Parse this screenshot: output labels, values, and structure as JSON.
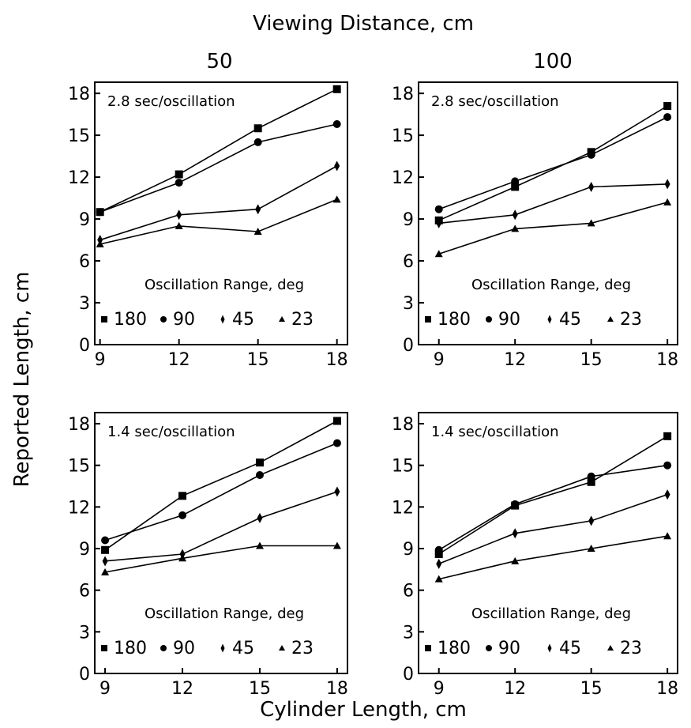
{
  "figure": {
    "top_label": "Viewing Distance, cm",
    "column_labels": [
      "50",
      "100"
    ],
    "xlabel": "Cylinder Length, cm",
    "ylabel": "Reported Length, cm"
  },
  "chart_data": [
    {
      "type": "line",
      "title": "2.8 sec/oscillation",
      "viewing_distance": "50",
      "x": [
        9,
        12,
        15,
        18
      ],
      "xlim": [
        8.8,
        18.4
      ],
      "ylim": [
        0,
        18.8
      ],
      "xticks": [
        9,
        12,
        15,
        18
      ],
      "yticks": [
        0,
        3,
        6,
        9,
        12,
        15,
        18
      ],
      "legend_title": "Oscillation Range, deg",
      "series": [
        {
          "name": "180",
          "marker": "square",
          "values": [
            9.5,
            12.2,
            15.5,
            18.3
          ]
        },
        {
          "name": "90",
          "marker": "circle",
          "values": [
            9.5,
            11.6,
            14.5,
            15.8
          ]
        },
        {
          "name": "45",
          "marker": "diamond",
          "values": [
            7.5,
            9.3,
            9.7,
            12.8
          ]
        },
        {
          "name": "23",
          "marker": "triangle",
          "values": [
            7.2,
            8.5,
            8.1,
            10.4
          ]
        }
      ]
    },
    {
      "type": "line",
      "title": "2.8 sec/oscillation",
      "viewing_distance": "100",
      "x": [
        9,
        12,
        15,
        18
      ],
      "xlim": [
        8.2,
        18.4
      ],
      "ylim": [
        0,
        18.8
      ],
      "xticks": [
        9,
        12,
        15,
        18
      ],
      "yticks": [
        0,
        3,
        6,
        9,
        12,
        15,
        18
      ],
      "legend_title": "Oscillation Range, deg",
      "series": [
        {
          "name": "180",
          "marker": "square",
          "values": [
            8.9,
            11.3,
            13.8,
            17.1
          ]
        },
        {
          "name": "90",
          "marker": "circle",
          "values": [
            9.7,
            11.7,
            13.6,
            16.3
          ]
        },
        {
          "name": "45",
          "marker": "diamond",
          "values": [
            8.7,
            9.3,
            11.3,
            11.5
          ]
        },
        {
          "name": "23",
          "marker": "triangle",
          "values": [
            6.5,
            8.3,
            8.7,
            10.2
          ]
        }
      ]
    },
    {
      "type": "line",
      "title": "1.4 sec/oscillation",
      "viewing_distance": "50",
      "x": [
        9,
        12,
        15,
        18
      ],
      "xlim": [
        8.6,
        18.4
      ],
      "ylim": [
        0,
        18.8
      ],
      "xticks": [
        9,
        12,
        15,
        18
      ],
      "yticks": [
        0,
        3,
        6,
        9,
        12,
        15,
        18
      ],
      "legend_title": "Oscillation Range, deg",
      "series": [
        {
          "name": "180",
          "marker": "square",
          "values": [
            8.9,
            12.8,
            15.2,
            18.2
          ]
        },
        {
          "name": "90",
          "marker": "circle",
          "values": [
            9.6,
            11.4,
            14.3,
            16.6
          ]
        },
        {
          "name": "45",
          "marker": "diamond",
          "values": [
            8.1,
            8.6,
            11.2,
            13.1
          ]
        },
        {
          "name": "23",
          "marker": "triangle",
          "values": [
            7.3,
            8.3,
            9.2,
            9.2
          ]
        }
      ]
    },
    {
      "type": "line",
      "title": "1.4 sec/oscillation",
      "viewing_distance": "100",
      "x": [
        9,
        12,
        15,
        18
      ],
      "xlim": [
        8.2,
        18.4
      ],
      "ylim": [
        0,
        18.8
      ],
      "xticks": [
        9,
        12,
        15,
        18
      ],
      "yticks": [
        0,
        3,
        6,
        9,
        12,
        15,
        18
      ],
      "legend_title": "Oscillation Range, deg",
      "series": [
        {
          "name": "180",
          "marker": "square",
          "values": [
            8.6,
            12.1,
            13.8,
            17.1
          ]
        },
        {
          "name": "90",
          "marker": "circle",
          "values": [
            8.9,
            12.2,
            14.2,
            15.0
          ]
        },
        {
          "name": "45",
          "marker": "diamond",
          "values": [
            7.9,
            10.1,
            11.0,
            12.9
          ]
        },
        {
          "name": "23",
          "marker": "triangle",
          "values": [
            6.8,
            8.1,
            9.0,
            9.9
          ]
        }
      ]
    }
  ]
}
